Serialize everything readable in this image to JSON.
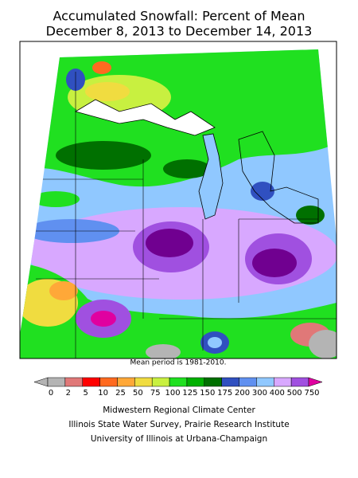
{
  "title": [
    "Accumulated Snowfall: Percent of Mean",
    "December 8, 2013 to December 14, 2013"
  ],
  "note": "Mean period is 1981-2010.",
  "legend": {
    "labels": [
      0,
      2,
      5,
      10,
      25,
      50,
      75,
      100,
      125,
      150,
      175,
      200,
      300,
      400,
      500,
      750
    ],
    "colors": [
      "#b4b4b4",
      "#b4b4b4",
      "#e07878",
      "#ff0000",
      "#ff6a20",
      "#ffa838",
      "#f0dc40",
      "#c8f040",
      "#20e020",
      "#00b000",
      "#007000",
      "#3050c0",
      "#6090f0",
      "#90c8ff",
      "#d8a8ff",
      "#a050e0",
      "#700090",
      "#e000a0"
    ]
  },
  "credits": [
    "Midwestern Regional Climate Center",
    "Illinois State Water Survey, Prairie Research Institute",
    "University of Illinois at Urbana-Champaign"
  ]
}
